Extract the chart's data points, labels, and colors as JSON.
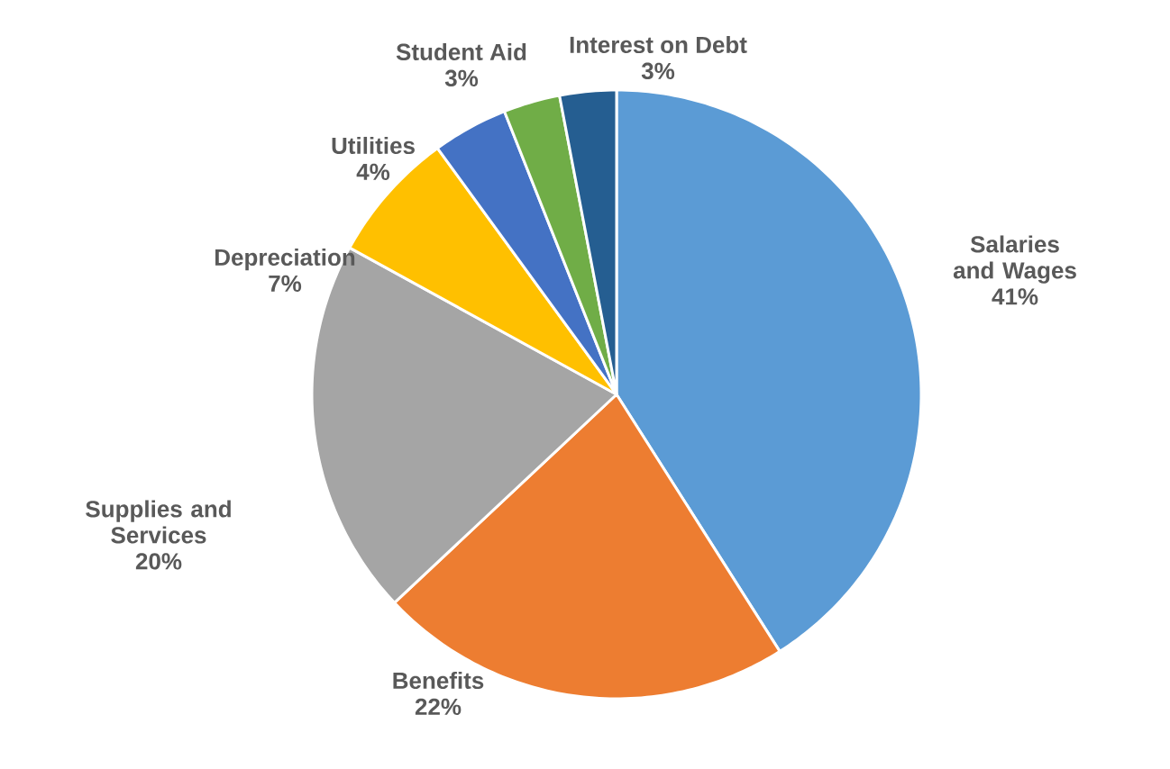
{
  "chart_data": {
    "type": "pie",
    "categories": [
      "Salaries and Wages",
      "Benefits",
      "Supplies and Services",
      "Depreciation",
      "Utilities",
      "Student Aid",
      "Interest on Debt"
    ],
    "values": [
      41,
      22,
      20,
      7,
      4,
      3,
      3
    ],
    "colors": [
      "#5b9bd5",
      "#ed7d31",
      "#a5a5a5",
      "#ffc000",
      "#4472c4",
      "#70ad47",
      "#255e91"
    ],
    "value_labels": [
      "41%",
      "22%",
      "20%",
      "7%",
      "4%",
      "3%",
      "3%"
    ]
  }
}
